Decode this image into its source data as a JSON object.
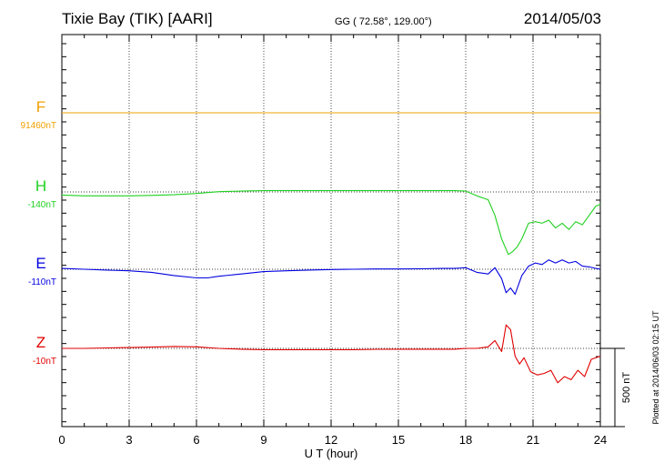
{
  "header": {
    "station": "Tixie Bay (TIK)  [AARI]",
    "coords": "GG ( 72.58°, 129.00°)",
    "date": "2014/05/03"
  },
  "footer": {
    "plotted": "Plotted at 2014/06/03 02:15 UT"
  },
  "chart_data": {
    "type": "line",
    "title": "Tixie Bay (TIK)  [AARI]",
    "xlabel": "U T (hour)",
    "ylabel": "",
    "xlim": [
      0,
      24
    ],
    "xticks": [
      "0",
      "3",
      "6",
      "9",
      "12",
      "15",
      "18",
      "21",
      "24"
    ],
    "scale_label": "500 nT",
    "scale_nT": 500,
    "grid": true,
    "series": [
      {
        "name": "F",
        "baseline_label": "91460nT",
        "color": "#f0a000",
        "x": [
          0,
          24
        ],
        "y": [
          0,
          0
        ]
      },
      {
        "name": "H",
        "baseline_label": "-140nT",
        "color": "#20d020",
        "x": [
          0,
          1,
          2,
          3,
          4,
          5,
          6,
          7,
          8,
          9,
          10,
          11,
          12,
          13,
          14,
          15,
          16,
          17,
          17.5,
          18,
          18.5,
          19,
          19.3,
          19.6,
          19.9,
          20.1,
          20.3,
          20.5,
          20.8,
          21.1,
          21.4,
          21.7,
          22,
          22.3,
          22.6,
          22.9,
          23.2,
          23.5,
          23.8,
          24
        ],
        "y": [
          -20,
          -25,
          -25,
          -25,
          -22,
          -18,
          -10,
          2,
          5,
          8,
          8,
          8,
          8,
          8,
          8,
          8,
          8,
          8,
          8,
          5,
          -25,
          -50,
          -150,
          -300,
          -400,
          -380,
          -350,
          -300,
          -200,
          -190,
          -200,
          -180,
          -230,
          -200,
          -240,
          -190,
          -210,
          -150,
          -90,
          -80
        ]
      },
      {
        "name": "E",
        "baseline_label": "-110nT",
        "color": "#0000e0",
        "x": [
          0,
          1,
          2,
          3,
          4,
          5,
          6,
          6.5,
          7,
          8,
          9,
          10,
          11,
          12,
          13,
          14,
          15,
          16,
          17,
          17.5,
          18,
          18.5,
          19,
          19.3,
          19.6,
          19.8,
          20,
          20.2,
          20.5,
          20.8,
          21.1,
          21.4,
          21.7,
          22,
          22.3,
          22.6,
          22.9,
          23.2,
          23.5,
          23.8,
          24
        ],
        "y": [
          5,
          0,
          -5,
          -10,
          -20,
          -40,
          -55,
          -55,
          -45,
          -30,
          -15,
          -10,
          -5,
          -2,
          0,
          2,
          2,
          3,
          5,
          5,
          10,
          -20,
          -30,
          10,
          -60,
          -150,
          -120,
          -160,
          -40,
          20,
          40,
          30,
          60,
          40,
          60,
          40,
          50,
          20,
          15,
          5,
          0
        ]
      },
      {
        "name": "Z",
        "baseline_label": "-10nT",
        "color": "#e00000",
        "x": [
          0,
          1,
          2,
          3,
          4,
          5,
          6,
          7,
          8,
          9,
          10,
          11,
          12,
          13,
          14,
          15,
          16,
          17,
          17.5,
          18,
          18.5,
          19,
          19.3,
          19.6,
          19.8,
          20,
          20.2,
          20.4,
          20.6,
          20.9,
          21.2,
          21.5,
          21.8,
          22.1,
          22.4,
          22.7,
          23,
          23.3,
          23.6,
          24
        ],
        "y": [
          0,
          0,
          3,
          5,
          8,
          12,
          10,
          0,
          -5,
          -8,
          -8,
          -8,
          -8,
          -8,
          -6,
          -5,
          -5,
          -5,
          -5,
          0,
          0,
          10,
          50,
          -20,
          150,
          120,
          -50,
          -100,
          -60,
          -150,
          -170,
          -160,
          -140,
          -220,
          -180,
          -200,
          -140,
          -180,
          -70,
          -50
        ]
      }
    ]
  }
}
